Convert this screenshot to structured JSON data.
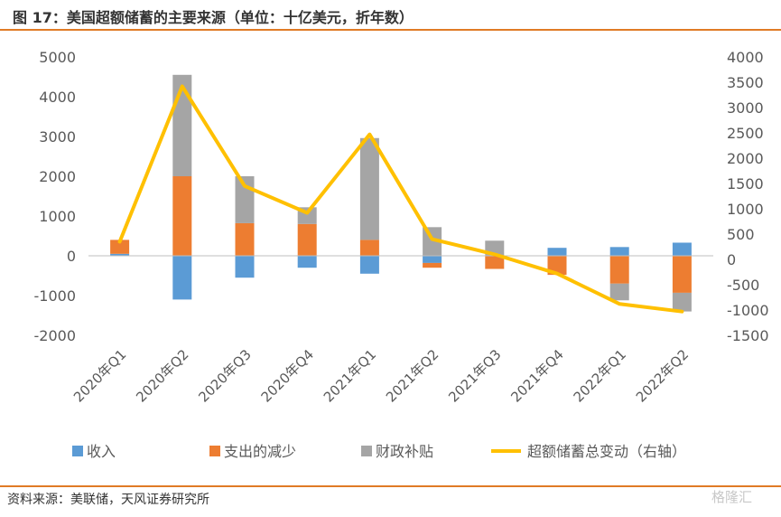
{
  "title": "图 17：美国超额储蓄的主要来源（单位：十亿美元，折年数）",
  "source": "资料来源：美联储，天风证券研究所",
  "watermark": "格隆汇",
  "colors": {
    "income": "#5b9bd5",
    "spending": "#ed7d31",
    "fiscal": "#a5a5a5",
    "total": "#ffc000",
    "rule": "#e07b25"
  },
  "chart_data": {
    "type": "bar",
    "stacked": true,
    "categories": [
      "2020年Q1",
      "2020年Q2",
      "2020年Q3",
      "2020年Q4",
      "2021年Q1",
      "2021年Q2",
      "2021年Q3",
      "2021年Q4",
      "2022年Q1",
      "2022年Q2"
    ],
    "series": [
      {
        "name": "收入",
        "type": "bar",
        "axis": "left",
        "color": "#5b9bd5",
        "values": [
          50,
          -1100,
          -550,
          -300,
          -450,
          -180,
          0,
          200,
          220,
          330
        ]
      },
      {
        "name": "支出的减少",
        "type": "bar",
        "axis": "left",
        "color": "#ed7d31",
        "values": [
          350,
          2000,
          820,
          800,
          400,
          -120,
          -330,
          -480,
          -700,
          -930
        ]
      },
      {
        "name": "财政补贴",
        "type": "bar",
        "axis": "left",
        "color": "#a5a5a5",
        "values": [
          0,
          2550,
          1180,
          420,
          2560,
          720,
          380,
          0,
          -420,
          -470
        ]
      },
      {
        "name": "超额储蓄总变动（右轴）",
        "type": "line",
        "axis": "right",
        "color": "#ffc000",
        "values": [
          350,
          3420,
          1450,
          920,
          2470,
          400,
          100,
          -280,
          -880,
          -1030
        ]
      }
    ],
    "yaxis_left": {
      "min": -2000,
      "max": 5000,
      "ticks": [
        5000,
        4000,
        3000,
        2000,
        1000,
        0,
        -1000,
        -2000
      ]
    },
    "yaxis_right": {
      "min": -1500,
      "max": 4000,
      "ticks": [
        4000,
        3500,
        3000,
        2500,
        2000,
        1500,
        1000,
        500,
        0,
        -500,
        -1000,
        -1500
      ]
    },
    "grid": false,
    "legend_position": "bottom"
  }
}
